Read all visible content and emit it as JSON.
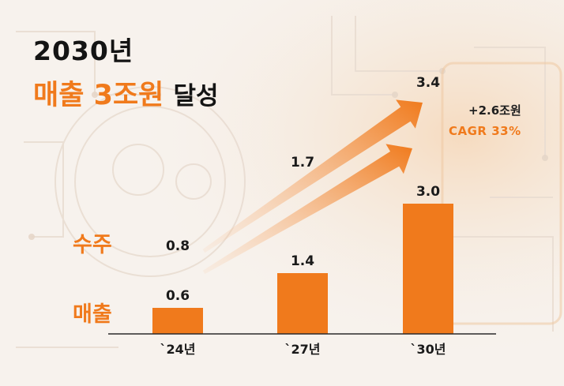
{
  "title": {
    "line1": "2030년",
    "highlight": "매출 3조원",
    "rest": "달성"
  },
  "row_labels": {
    "orders": "수주",
    "sales": "매출"
  },
  "note": {
    "increase": "+2.6조원",
    "cagr": "CAGR 33%"
  },
  "colors": {
    "accent": "#f07a1c",
    "text": "#141414"
  },
  "chart_data": {
    "type": "bar",
    "categories": [
      "`24년",
      "`27년",
      "`30년"
    ],
    "series": [
      {
        "name": "매출",
        "values": [
          0.6,
          1.4,
          3.0
        ],
        "labels": [
          "0.6",
          "1.4",
          "3.0"
        ]
      },
      {
        "name": "수주",
        "values": [
          0.8,
          1.7,
          3.4
        ],
        "labels": [
          "0.8",
          "1.7",
          "3.4"
        ]
      }
    ],
    "ylim": [
      0,
      3.4
    ],
    "grid": false,
    "legend": "left"
  }
}
